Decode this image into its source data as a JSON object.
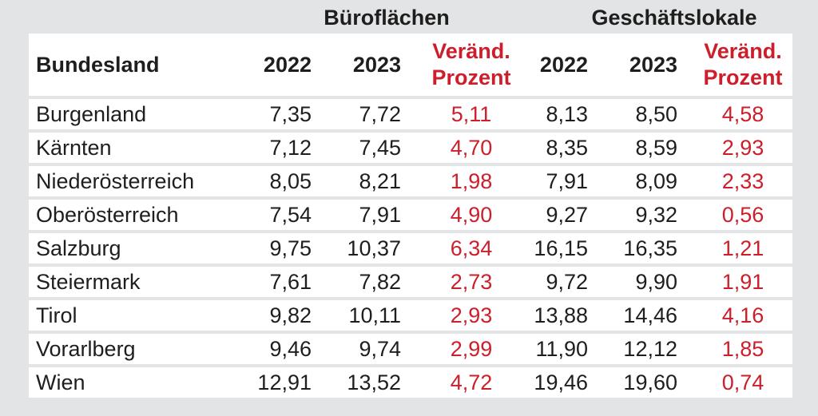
{
  "chart_data": {
    "type": "table",
    "group_headers": [
      "Büroflächen",
      "Geschäftslokale"
    ],
    "columns": [
      "Bundesland",
      "2022",
      "2023",
      "Veränd. Prozent",
      "2022",
      "2023",
      "Veränd. Prozent"
    ],
    "change_header": [
      "Veränd.",
      "Prozent"
    ],
    "rows": [
      [
        "Burgenland",
        "7,35",
        "7,72",
        "5,11",
        "8,13",
        "8,50",
        "4,58"
      ],
      [
        "Kärnten",
        "7,12",
        "7,45",
        "4,70",
        "8,35",
        "8,59",
        "2,93"
      ],
      [
        "Niederösterreich",
        "8,05",
        "8,21",
        "1,98",
        "7,91",
        "8,09",
        "2,33"
      ],
      [
        "Oberösterreich",
        "7,54",
        "7,91",
        "4,90",
        "9,27",
        "9,32",
        "0,56"
      ],
      [
        "Salzburg",
        "9,75",
        "10,37",
        "6,34",
        "16,15",
        "16,35",
        "1,21"
      ],
      [
        "Steiermark",
        "7,61",
        "7,82",
        "2,73",
        "9,72",
        "9,90",
        "1,91"
      ],
      [
        "Tirol",
        "9,82",
        "10,11",
        "2,93",
        "13,88",
        "14,46",
        "4,16"
      ],
      [
        "Vorarlberg",
        "9,46",
        "9,74",
        "2,99",
        "11,90",
        "12,12",
        "1,85"
      ],
      [
        "Wien",
        "12,91",
        "13,52",
        "4,72",
        "19,46",
        "19,60",
        "0,74"
      ]
    ],
    "colors": {
      "background": "#e3e4e6",
      "cell": "#ffffff",
      "text": "#1e1e1e",
      "change": "#cc1f2b"
    }
  }
}
